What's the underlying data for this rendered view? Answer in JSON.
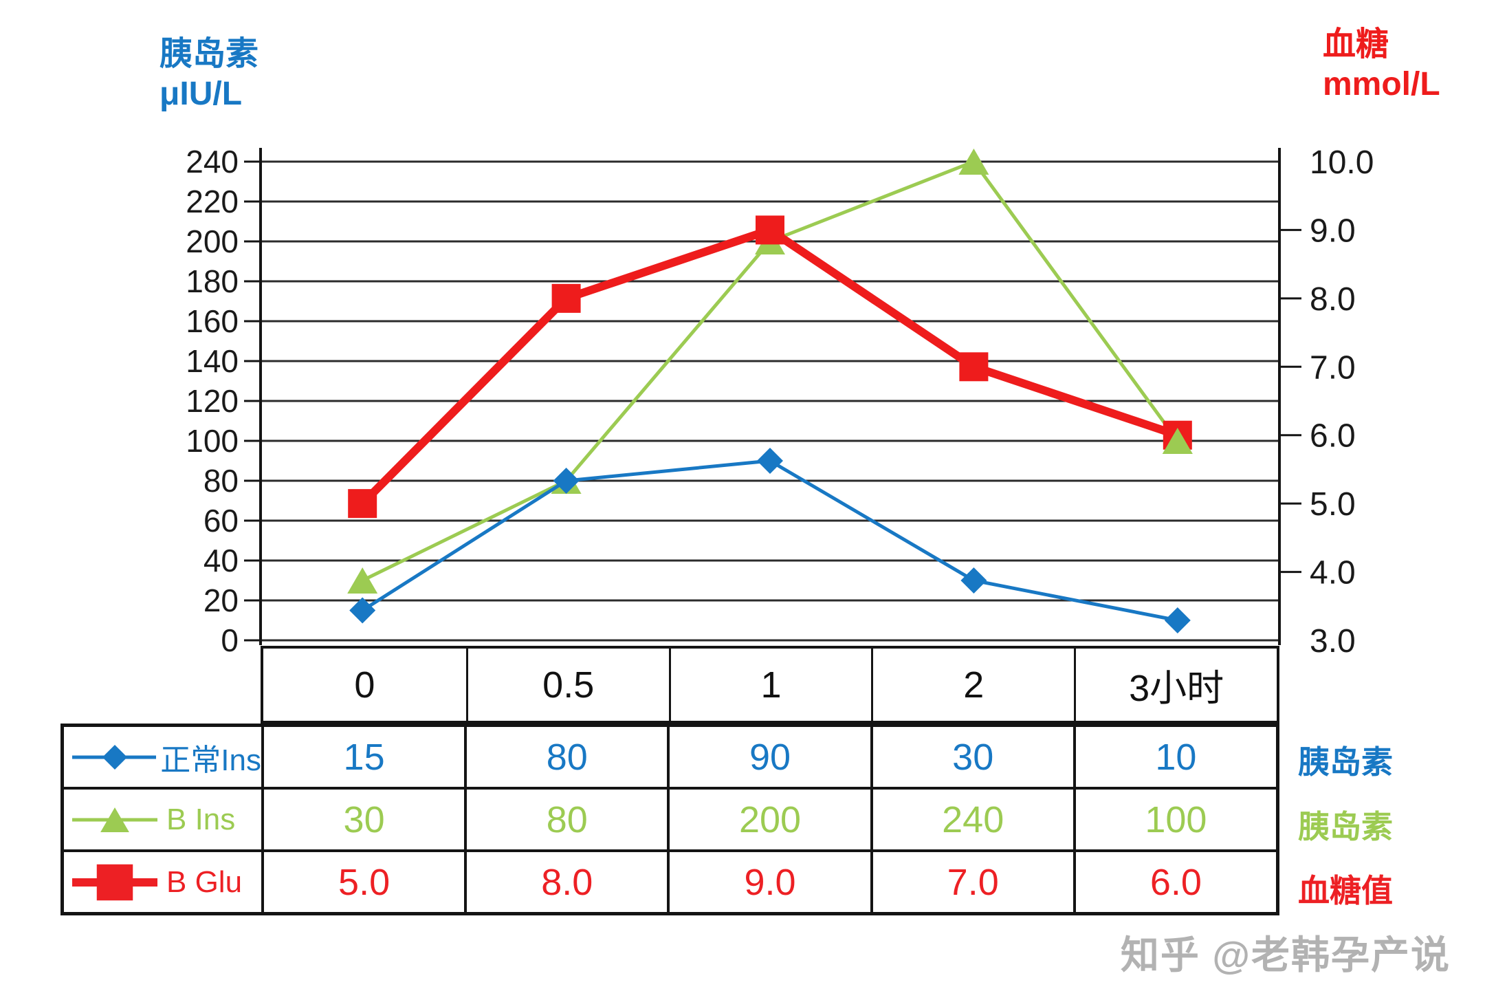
{
  "left_axis": {
    "title_line1": "胰岛素",
    "title_line2": "μIU/L",
    "ticks": [
      "240",
      "220",
      "200",
      "180",
      "160",
      "140",
      "120",
      "100",
      "80",
      "60",
      "40",
      "20",
      "0"
    ],
    "min": 0,
    "max": 240,
    "color": "#1878C4"
  },
  "right_axis": {
    "title_line1": "血糖",
    "title_line2": "mmol/L",
    "ticks": [
      "10.0",
      "9.0",
      "8.0",
      "7.0",
      "6.0",
      "5.0",
      "4.0",
      "3.0"
    ],
    "min": 3,
    "max": 10,
    "color": "#EE1C1C"
  },
  "x_axis": {
    "categories": [
      "0",
      "0.5",
      "1",
      "2",
      "3小时"
    ]
  },
  "chart_data": {
    "type": "line",
    "categories": [
      "0",
      "0.5",
      "1",
      "2",
      "3小时"
    ],
    "series": [
      {
        "name": "正常Ins",
        "axis": "left",
        "marker": "diamond",
        "color": "#1878C4",
        "values": [
          15,
          80,
          90,
          30,
          10
        ]
      },
      {
        "name": "B Ins",
        "axis": "left",
        "marker": "triangle",
        "color": "#9CCB52",
        "values": [
          30,
          80,
          200,
          240,
          100
        ]
      },
      {
        "name": "B Glu",
        "axis": "right",
        "marker": "square",
        "color": "#EE1C1C",
        "values": [
          5.0,
          8.0,
          9.0,
          7.0,
          6.0
        ]
      }
    ],
    "title": "",
    "xlabel": "",
    "left_ylabel": "胰岛素 μIU/L",
    "right_ylabel": "血糖 mmol/L",
    "left_ylim": [
      0,
      240
    ],
    "right_ylim": [
      3,
      10
    ],
    "grid": "horizontal",
    "legend_position": "table-left"
  },
  "table": {
    "rows": [
      {
        "legend": "正常Ins",
        "unit_label": "胰岛素",
        "color": "#1878C4",
        "marker": "diamond",
        "values": [
          "15",
          "80",
          "90",
          "30",
          "10"
        ]
      },
      {
        "legend": "B Ins",
        "unit_label": "胰岛素",
        "color": "#9CCB52",
        "marker": "triangle",
        "values": [
          "30",
          "80",
          "200",
          "240",
          "100"
        ]
      },
      {
        "legend": "B Glu",
        "unit_label": "血糖值",
        "color": "#ED2024",
        "marker": "square",
        "values": [
          "5.0",
          "8.0",
          "9.0",
          "7.0",
          "6.0"
        ]
      }
    ]
  },
  "watermark": "知乎 @老韩孕产说"
}
